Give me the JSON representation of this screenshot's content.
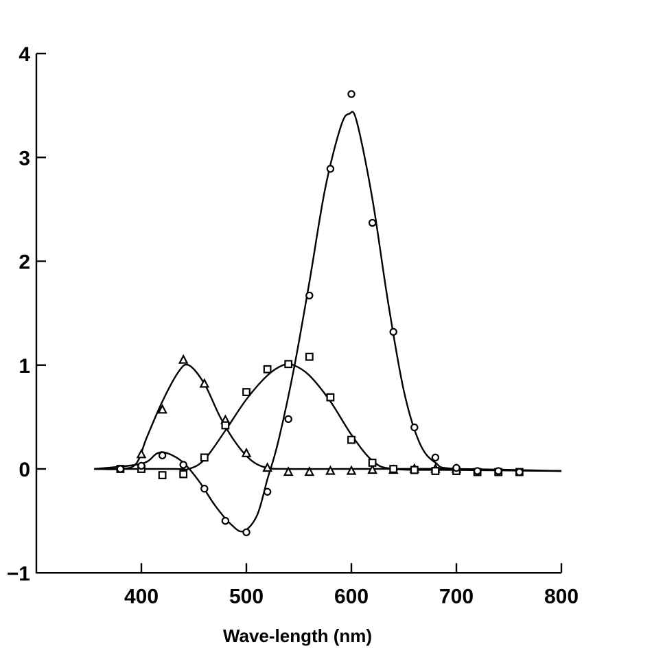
{
  "chart_data": {
    "type": "line",
    "title": "",
    "xlabel": "Wave-length (nm)",
    "ylabel": "",
    "xlim": [
      300,
      800
    ],
    "ylim": [
      -1,
      4
    ],
    "x_ticks": [
      "400",
      "500",
      "600",
      "700",
      "800"
    ],
    "y_ticks": [
      "4",
      "3",
      "2",
      "1",
      "0",
      "−1"
    ],
    "grid": false,
    "legend": "none",
    "series": [
      {
        "marker": "triangle",
        "points": [
          [
            400,
            0.14
          ],
          [
            420,
            0.57
          ],
          [
            440,
            1.05
          ],
          [
            460,
            0.82
          ],
          [
            480,
            0.47
          ],
          [
            500,
            0.15
          ],
          [
            520,
            0.01
          ],
          [
            540,
            -0.03
          ],
          [
            560,
            -0.03
          ],
          [
            580,
            -0.02
          ],
          [
            600,
            -0.02
          ],
          [
            620,
            -0.01
          ],
          [
            640,
            -0.01
          ],
          [
            660,
            0.0
          ],
          [
            680,
            0.0
          ],
          [
            700,
            0.0
          ]
        ],
        "curve": [
          [
            355,
            0.0
          ],
          [
            380,
            0.0
          ],
          [
            395,
            0.05
          ],
          [
            405,
            0.3
          ],
          [
            420,
            0.65
          ],
          [
            435,
            0.93
          ],
          [
            445,
            1.0
          ],
          [
            460,
            0.82
          ],
          [
            475,
            0.5
          ],
          [
            490,
            0.25
          ],
          [
            505,
            0.08
          ],
          [
            520,
            0.01
          ],
          [
            540,
            0.0
          ],
          [
            600,
            0.0
          ],
          [
            700,
            0.0
          ],
          [
            800,
            -0.02
          ]
        ]
      },
      {
        "marker": "square",
        "points": [
          [
            380,
            0.0
          ],
          [
            400,
            0.0
          ],
          [
            420,
            -0.06
          ],
          [
            440,
            -0.05
          ],
          [
            460,
            0.11
          ],
          [
            480,
            0.42
          ],
          [
            500,
            0.74
          ],
          [
            520,
            0.96
          ],
          [
            540,
            1.01
          ],
          [
            560,
            1.08
          ],
          [
            580,
            0.69
          ],
          [
            600,
            0.28
          ],
          [
            620,
            0.06
          ],
          [
            640,
            0.0
          ],
          [
            660,
            -0.01
          ],
          [
            680,
            -0.02
          ],
          [
            700,
            -0.02
          ],
          [
            720,
            -0.03
          ],
          [
            740,
            -0.03
          ],
          [
            760,
            -0.03
          ]
        ],
        "curve": [
          [
            355,
            0.0
          ],
          [
            430,
            0.0
          ],
          [
            445,
            0.0
          ],
          [
            460,
            0.09
          ],
          [
            480,
            0.37
          ],
          [
            500,
            0.67
          ],
          [
            520,
            0.9
          ],
          [
            535,
            1.0
          ],
          [
            545,
            1.0
          ],
          [
            560,
            0.9
          ],
          [
            580,
            0.65
          ],
          [
            600,
            0.33
          ],
          [
            620,
            0.08
          ],
          [
            640,
            0.0
          ],
          [
            700,
            -0.01
          ],
          [
            800,
            -0.02
          ]
        ]
      },
      {
        "marker": "circle",
        "points": [
          [
            380,
            0.0
          ],
          [
            400,
            0.03
          ],
          [
            420,
            0.13
          ],
          [
            440,
            0.04
          ],
          [
            460,
            -0.19
          ],
          [
            480,
            -0.5
          ],
          [
            500,
            -0.61
          ],
          [
            520,
            -0.22
          ],
          [
            540,
            0.48
          ],
          [
            560,
            1.67
          ],
          [
            580,
            2.89
          ],
          [
            600,
            3.61
          ],
          [
            620,
            2.37
          ],
          [
            640,
            1.32
          ],
          [
            660,
            0.4
          ],
          [
            680,
            0.11
          ],
          [
            700,
            0.01
          ],
          [
            720,
            -0.02
          ],
          [
            740,
            -0.02
          ],
          [
            760,
            -0.03
          ]
        ],
        "curve": [
          [
            355,
            0.0
          ],
          [
            400,
            0.05
          ],
          [
            415,
            0.15
          ],
          [
            425,
            0.15
          ],
          [
            440,
            0.06
          ],
          [
            455,
            -0.12
          ],
          [
            470,
            -0.35
          ],
          [
            485,
            -0.53
          ],
          [
            497,
            -0.6
          ],
          [
            510,
            -0.45
          ],
          [
            520,
            -0.1
          ],
          [
            530,
            0.25
          ],
          [
            545,
            0.95
          ],
          [
            560,
            1.8
          ],
          [
            575,
            2.7
          ],
          [
            590,
            3.3
          ],
          [
            598,
            3.42
          ],
          [
            605,
            3.35
          ],
          [
            620,
            2.6
          ],
          [
            635,
            1.6
          ],
          [
            650,
            0.75
          ],
          [
            665,
            0.25
          ],
          [
            680,
            0.06
          ],
          [
            700,
            0.0
          ],
          [
            800,
            -0.02
          ]
        ]
      }
    ]
  }
}
